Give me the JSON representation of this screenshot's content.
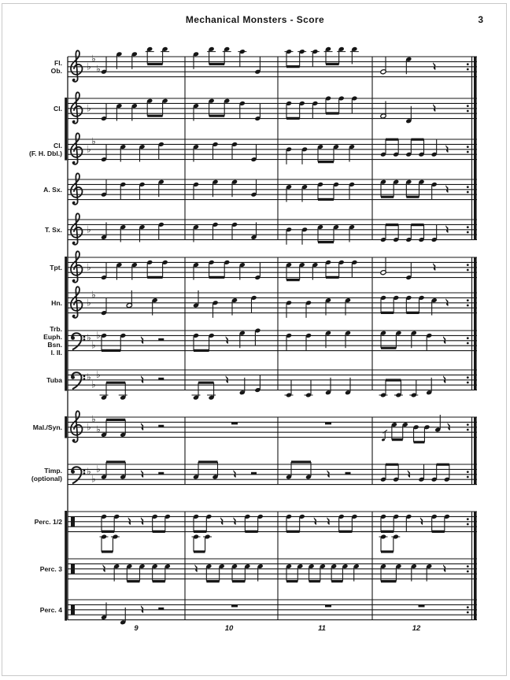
{
  "header": {
    "title": "Mechanical Monsters - Score",
    "page_number": "3"
  },
  "measure_numbers": [
    "9",
    "10",
    "11",
    "12"
  ],
  "barline_end_style": "repeat",
  "ink_color": "#161616",
  "staves": [
    {
      "id": "fl-ob",
      "label": [
        "Fl.",
        "Ob."
      ],
      "clef": "treble",
      "flats": 3,
      "measures": [
        "q:-2 q:5 q:5 e:7 e:7",
        "q:5 e:7 e:7 q:6 q:-2",
        "e:6 e:6 q:6 e:7 e:7 q:7",
        "h:-2 q:3 r"
      ]
    },
    {
      "id": "cl",
      "label": [
        "Cl."
      ],
      "clef": "treble",
      "flats": 1,
      "measures": [
        "q:-4 q:1 q:1 e:3 e:3",
        "q:1 e:3 e:3 q:2 q:-4",
        "e:2 e:2 q:2 e:4 e:4 q:4",
        "h:-3 q:-5 r"
      ]
    },
    {
      "id": "cl-fh",
      "label": [
        "Cl.",
        "(F. H. Dbl.)"
      ],
      "clef": "treble",
      "flats": 2,
      "measures": [
        "q:-4 q:1 q:1 q:2",
        "q:1 q:2 q:2 q:-4",
        "q:0 q:0 e:1 e:1 q:1",
        "e:-2 e:-2 e:-2 e:-2 q:-2 r"
      ]
    },
    {
      "id": "a-sx",
      "label": [
        "A. Sx."
      ],
      "clef": "treble",
      "flats": 0,
      "measures": [
        "q:-2 q:2 q:2 q:3",
        "q:2 q:3 q:3 q:-2",
        "q:1 q:1 e:2 e:2 q:2",
        "e:3 e:3 e:3 e:3 q:2 r"
      ]
    },
    {
      "id": "t-sx",
      "label": [
        "T. Sx."
      ],
      "clef": "treble",
      "flats": 1,
      "measures": [
        "q:-3 q:1 q:1 q:2",
        "q:1 q:2 q:2 q:-3",
        "q:0 q:0 e:1 e:1 q:1",
        "e:-4 e:-4 e:-4 e:-4 q:-4 r"
      ]
    },
    {
      "id": "tpt",
      "label": [
        "Tpt."
      ],
      "clef": "treble",
      "flats": 1,
      "measures": [
        "q:-4 q:1 q:1 e:2 e:2",
        "q:1 e:2 e:2 q:1 q:-4",
        "e:1 e:1 q:1 e:2 e:2 q:2",
        "h:-2 q:-4 r"
      ]
    },
    {
      "id": "hn",
      "label": [
        "Hn."
      ],
      "clef": "treble",
      "flats": 2,
      "measures": [
        "q:-4 h:-1 q:1",
        "q:-1 q:0 q:1 q:2",
        "q:0 q:0 q:1 q:1",
        "e:2 e:2 e:2 e:2 q:1 r"
      ]
    },
    {
      "id": "trb",
      "label": [
        "Trb.",
        "Euph.",
        "Bsn.",
        "I. II."
      ],
      "clef": "bass",
      "flats": 3,
      "measures": [
        "e:2 e:2 r R",
        "e:2 e:2 r q:3 q:4",
        "q:2 q:2 q:3 q:3",
        "e:3 e:3 q:3 q:2 r"
      ]
    },
    {
      "id": "tuba",
      "label": [
        "Tuba"
      ],
      "clef": "bass",
      "flats": 3,
      "measures": [
        "e:-7 e:-7 r R",
        "e:-7 e:-7 r q:-5 q:-4",
        "q:-6 q:-6 q:-5 q:-5",
        "e:-6 e:-6 q:-6 q:-5 r"
      ]
    },
    {
      "id": "mal-syn",
      "label": [
        "Mal./Syn."
      ],
      "clef": "treble",
      "flats": 3,
      "measures": [
        "e:-3 e:-3 r R",
        "W",
        "W",
        "g:-5 e:1 e:1 e:0 e:0 q:-1 r"
      ]
    },
    {
      "id": "timp",
      "label": [
        "Timp.",
        "(optional)"
      ],
      "clef": "bass",
      "flats": 3,
      "measures": [
        "e:-1 e:-1 r R",
        "e:-1 e:-1 r R",
        "e:-1 e:-1 r R",
        "e:-2 e:-2 r q:-2 e:-2 e:-2"
      ]
    },
    {
      "id": "perc12",
      "label": [
        "Perc. 1/2"
      ],
      "clef": "perc",
      "flats": 0,
      "measures": [
        "e:2 e:2 r r e:2 e:2",
        "e:2 e:2 r r e:2 e:2",
        "e:2 e:2 r r e:2 e:2",
        "e:2 e:2 q:2 r e:2 e:2"
      ],
      "voice2": [
        "E:-6 E:-6",
        "E:-6 E:-6",
        "",
        "E:-6 E:-6"
      ]
    },
    {
      "id": "perc3",
      "label": [
        "Perc. 3"
      ],
      "clef": "perc",
      "flats": 0,
      "measures": [
        "r q:1 e:1 e:1 e:1 e:1",
        "r e:1 e:1 e:1 e:1 q:1",
        "e:1 e:1 e:1 e:1 e:1 e:1 q:1",
        "e:1 e:1 q:1 q:1 r"
      ]
    },
    {
      "id": "perc4",
      "label": [
        "Perc. 4"
      ],
      "clef": "perc",
      "flats": 0,
      "measures": [
        "q:-3 q:-5 r R",
        "W",
        "W",
        "W"
      ]
    }
  ]
}
